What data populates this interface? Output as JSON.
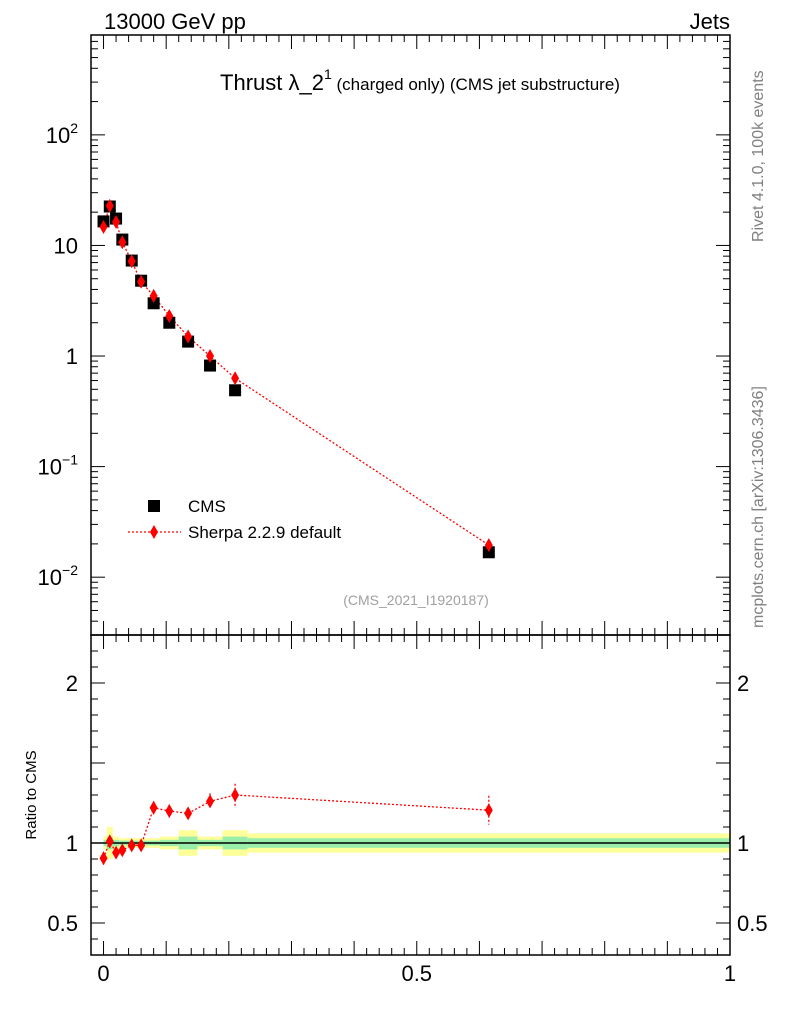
{
  "header": {
    "left_label": "13000 GeV pp",
    "right_label": "Jets"
  },
  "side_labels": {
    "top": "Rivet 4.1.0,  100k events",
    "bottom": "mcplots.cern.ch [arXiv:1306.3436]"
  },
  "chart_data": [
    {
      "type": "scatter",
      "panel": "main",
      "title_main": "Thrust λ_2",
      "title_sup": "1",
      "title_rest": " (charged only) (CMS jet substructure)",
      "watermark": "(CMS_2021_I1920187)",
      "yscale": "log",
      "xlim": [
        -0.02,
        1.0
      ],
      "ylim": [
        0.003,
        800
      ],
      "y_tick_labels": [
        {
          "value": 100,
          "base": "10",
          "exp": "2"
        },
        {
          "value": 10,
          "base": "10",
          "exp": ""
        },
        {
          "value": 1,
          "base": "1",
          "exp": ""
        },
        {
          "value": 0.1,
          "base": "10",
          "exp": "−1"
        },
        {
          "value": 0.01,
          "base": "10",
          "exp": "−2"
        }
      ],
      "legend_position": "bottom-left",
      "series": [
        {
          "name": "CMS",
          "marker": "square",
          "color": "#000000",
          "x": [
            0.0,
            0.01,
            0.02,
            0.03,
            0.045,
            0.06,
            0.08,
            0.105,
            0.135,
            0.17,
            0.21,
            0.615
          ],
          "y": [
            16.5,
            22.5,
            17.5,
            11.3,
            7.3,
            4.8,
            3.0,
            2.0,
            1.35,
            0.82,
            0.49,
            0.0168
          ]
        },
        {
          "name": "Sherpa 2.2.9 default",
          "marker": "diamond",
          "color": "#ff0000",
          "line": "dotted",
          "x": [
            0.0,
            0.01,
            0.02,
            0.03,
            0.045,
            0.06,
            0.08,
            0.105,
            0.135,
            0.17,
            0.21,
            0.615
          ],
          "y": [
            14.7,
            22.8,
            16.3,
            10.7,
            7.2,
            4.7,
            3.5,
            2.3,
            1.5,
            1.0,
            0.63,
            0.0195
          ]
        }
      ]
    },
    {
      "type": "scatter",
      "panel": "ratio",
      "ylabel": "Ratio to CMS",
      "xlim": [
        -0.02,
        1.0
      ],
      "ylim": [
        0.3,
        2.3
      ],
      "y_tick_labels": [
        {
          "value": 2,
          "label": "2"
        },
        {
          "value": 1,
          "label": "1"
        },
        {
          "value": 0.5,
          "label": "0.5"
        }
      ],
      "x_tick_labels": [
        {
          "value": 0,
          "label": "0"
        },
        {
          "value": 0.5,
          "label": "0.5"
        },
        {
          "value": 1,
          "label": "1"
        }
      ],
      "x_bins": [
        0.0,
        0.005,
        0.015,
        0.025,
        0.035,
        0.055,
        0.07,
        0.09,
        0.12,
        0.15,
        0.19,
        0.23,
        1.0
      ],
      "band_inner": [
        0.02,
        0.04,
        0.02,
        0.015,
        0.015,
        0.015,
        0.015,
        0.02,
        0.04,
        0.02,
        0.04,
        0.03
      ],
      "band_outer": [
        0.04,
        0.1,
        0.04,
        0.03,
        0.03,
        0.03,
        0.03,
        0.04,
        0.08,
        0.04,
        0.08,
        0.06
      ],
      "series": [
        {
          "name": "Sherpa 2.2.9 default",
          "color": "#ff0000",
          "x": [
            0.0,
            0.01,
            0.02,
            0.03,
            0.045,
            0.06,
            0.08,
            0.105,
            0.135,
            0.17,
            0.21,
            0.615
          ],
          "y": [
            0.905,
            1.01,
            0.94,
            0.955,
            0.985,
            0.985,
            1.22,
            1.2,
            1.185,
            1.26,
            1.3,
            1.205
          ],
          "yerr": [
            0.04,
            0.04,
            0.03,
            0.025,
            0.025,
            0.03,
            0.04,
            0.04,
            0.035,
            0.05,
            0.07,
            0.09
          ]
        }
      ]
    }
  ]
}
